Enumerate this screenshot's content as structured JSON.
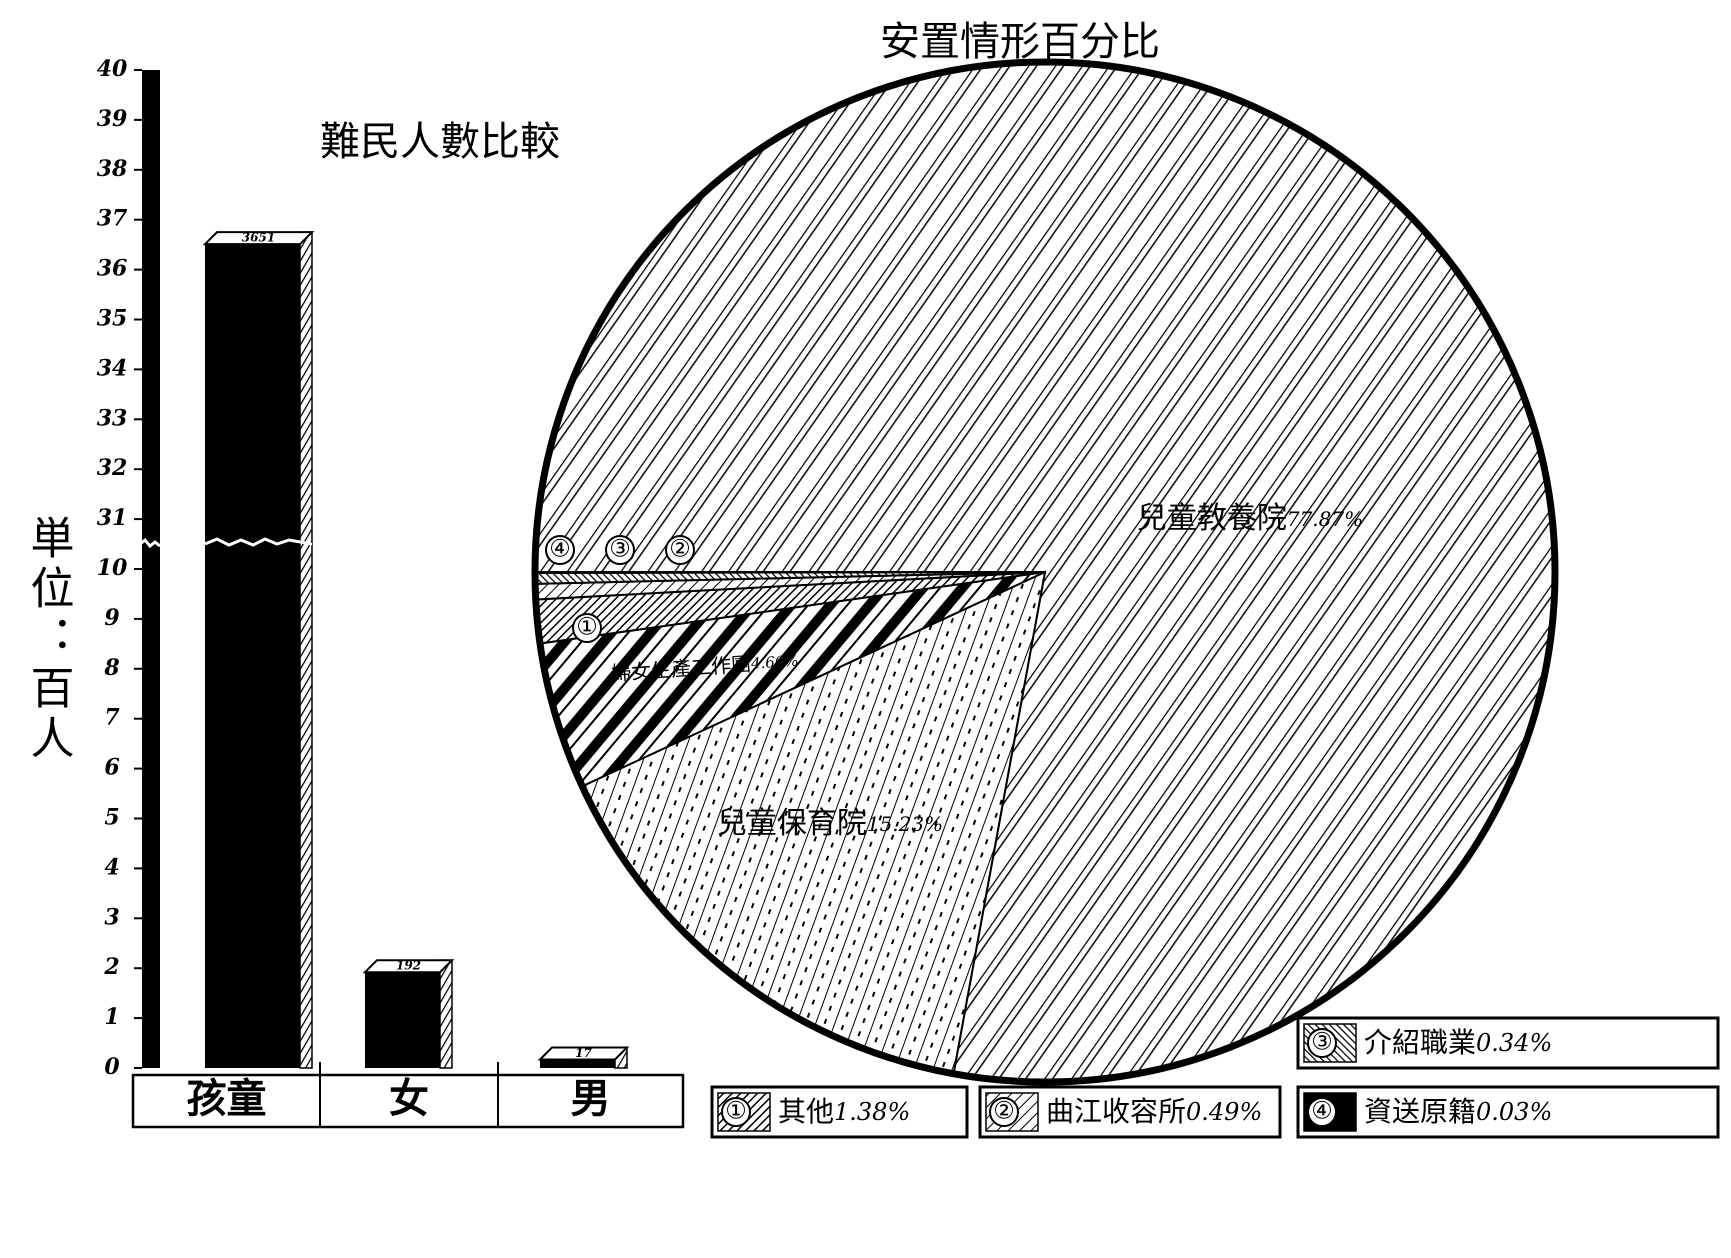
{
  "chart_data": [
    {
      "type": "bar",
      "title": "難民人數比較",
      "y_label": "単位：百人",
      "categories": [
        "孩童",
        "女",
        "男"
      ],
      "values": [
        36.51,
        1.92,
        0.17
      ],
      "value_labels": [
        "3651",
        "192",
        "17"
      ],
      "ylim": [
        0,
        40
      ],
      "yticks": [
        0,
        1,
        2,
        3,
        4,
        5,
        6,
        7,
        8,
        9,
        10,
        31,
        32,
        33,
        34,
        35,
        36,
        37,
        38,
        39,
        40
      ]
    },
    {
      "type": "pie",
      "title": "安置情形百分比",
      "categories": [
        "兒童教養院",
        "兒童保育院",
        "婦女生產工作團",
        "其他",
        "曲江收容所",
        "介紹職業",
        "資送原籍"
      ],
      "values": [
        77.87,
        15.23,
        4.66,
        1.38,
        0.49,
        0.34,
        0.03
      ],
      "value_labels": [
        "77.87%",
        "15.23%",
        "4.66%",
        "1.38%",
        "0.49%",
        "0.34%",
        "0.03%"
      ],
      "markers": [
        null,
        null,
        null,
        "①",
        "②",
        "③",
        "④"
      ]
    }
  ]
}
